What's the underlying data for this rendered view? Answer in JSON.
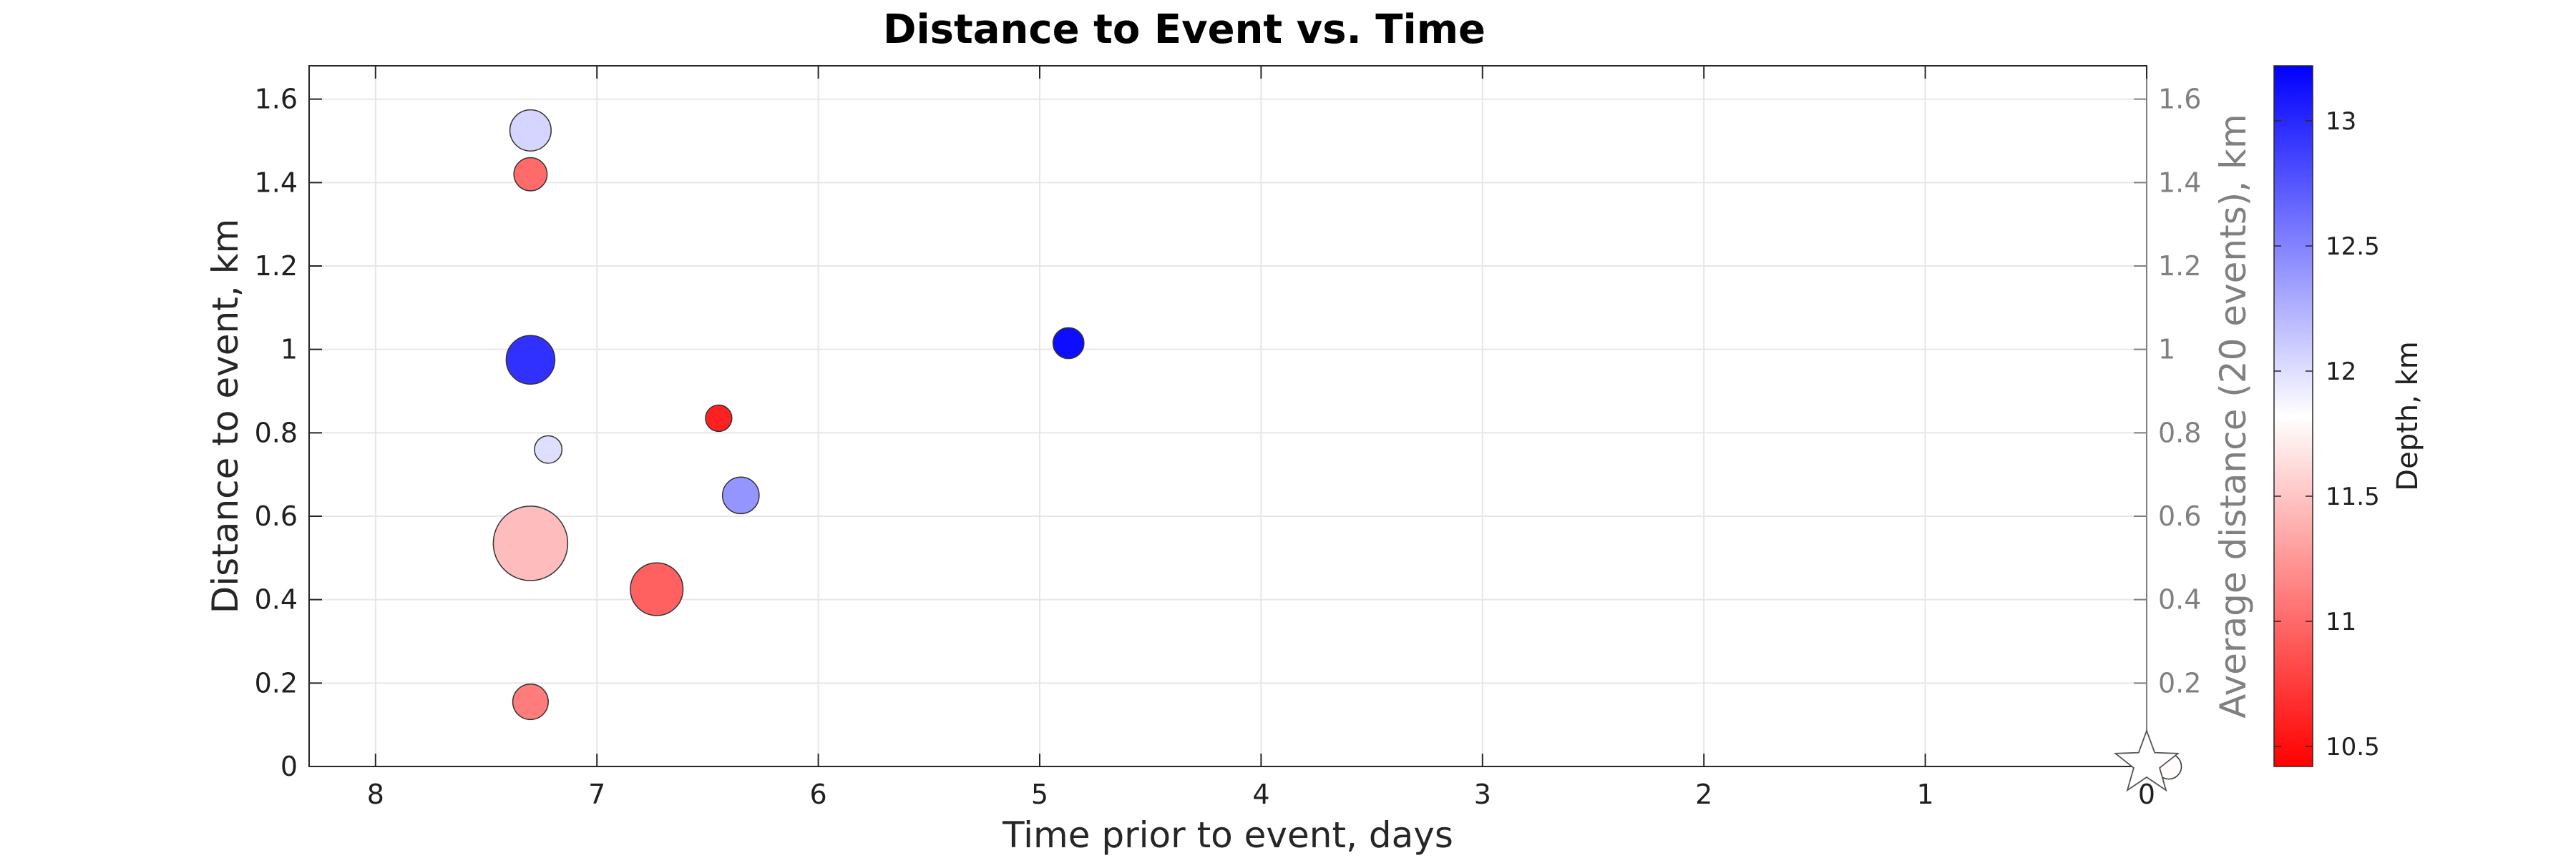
{
  "chart_data": {
    "type": "scatter",
    "title": "Distance to Event vs. Time",
    "xlabel": "Time prior to event, days",
    "ylabel": "Distance to event, km",
    "ylabel_right": "Average distance (20 events), km",
    "xlim": [
      8.3,
      0
    ],
    "ylim": [
      0,
      1.68
    ],
    "x_ticks": [
      "8",
      "7",
      "6",
      "5",
      "4",
      "3",
      "2",
      "1",
      "0"
    ],
    "y_ticks": [
      "0",
      "0.2",
      "0.4",
      "0.6",
      "0.8",
      "1",
      "1.2",
      "1.4",
      "1.6"
    ],
    "y_ticks_right": [
      "0.2",
      "0.4",
      "0.6",
      "0.8",
      "1",
      "1.2",
      "1.4",
      "1.6"
    ],
    "grid": true,
    "colorbar": {
      "label": "Depth, km",
      "range": [
        10.42,
        13.22
      ],
      "ticks": [
        "10.5",
        "11",
        "11.5",
        "12",
        "12.5",
        "13"
      ],
      "colormap": [
        "#ff0000",
        "#ffffff",
        "#0000ff"
      ]
    },
    "points": [
      {
        "x": 7.3,
        "y": 1.525,
        "depth": 12.05,
        "size": 0.42
      },
      {
        "x": 7.3,
        "y": 1.42,
        "depth": 11.0,
        "size": 0.28
      },
      {
        "x": 7.3,
        "y": 0.975,
        "depth": 12.95,
        "size": 0.55
      },
      {
        "x": 7.22,
        "y": 0.76,
        "depth": 12.0,
        "size": 0.18
      },
      {
        "x": 7.3,
        "y": 0.535,
        "depth": 11.45,
        "size": 1.0
      },
      {
        "x": 7.3,
        "y": 0.155,
        "depth": 11.1,
        "size": 0.32
      },
      {
        "x": 6.73,
        "y": 0.425,
        "depth": 10.95,
        "size": 0.62
      },
      {
        "x": 6.45,
        "y": 0.835,
        "depth": 10.6,
        "size": 0.16
      },
      {
        "x": 6.35,
        "y": 0.65,
        "depth": 12.4,
        "size": 0.34
      },
      {
        "x": 4.87,
        "y": 1.015,
        "depth": 13.15,
        "size": 0.24
      },
      {
        "x": -0.1,
        "y": 0.0,
        "depth": 11.8,
        "size": 0.14
      }
    ],
    "event_marker": {
      "x": 0,
      "y": 0,
      "shape": "star"
    }
  }
}
